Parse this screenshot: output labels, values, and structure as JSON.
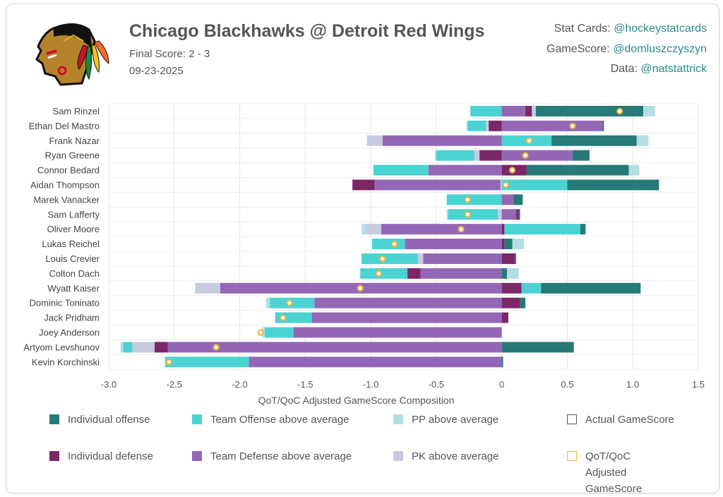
{
  "header": {
    "title": "Chicago Blackhawks @ Detroit Red Wings",
    "final_score": "Final Score: 2 - 3",
    "date": "09-23-2025",
    "credits": [
      {
        "label": "Stat Cards:",
        "handle": "@hockeystatcards"
      },
      {
        "label": "GameScore:",
        "handle": "@domluszczyszyn"
      },
      {
        "label": "Data:",
        "handle": "@natstattrick"
      }
    ],
    "logo": "Chicago Blackhawks logo"
  },
  "colors": {
    "IO": "#267a78",
    "TO": "#4bd3d3",
    "PP": "#b2dfe2",
    "ID": "#7a2868",
    "TD": "#9467b6",
    "PK": "#c6cbe0",
    "actual": "#555555",
    "adjusted": "#f2b235"
  },
  "legend": [
    {
      "key": "IO",
      "label": "Individual offense"
    },
    {
      "key": "TO",
      "label": "Team Offense above average"
    },
    {
      "key": "PP",
      "label": "PP above average"
    },
    {
      "key": "actual",
      "label": "Actual GameScore"
    },
    {
      "key": "ID",
      "label": "Individual defense"
    },
    {
      "key": "TD",
      "label": "Team Defense above average"
    },
    {
      "key": "PK",
      "label": "PK above average"
    },
    {
      "key": "adjusted",
      "label": "QoT/QoC Adjusted GameScore"
    }
  ],
  "chart_data": {
    "type": "bar",
    "orientation": "horizontal-stacked",
    "xlabel": "QoT/QoC Adjusted GameScore Composition",
    "xlim": [
      -3.0,
      1.5
    ],
    "xticks": [
      "-3.0",
      "-2.5",
      "-2.0",
      "-1.5",
      "-1.0",
      "-0.5",
      "0",
      "0.5",
      "1.0",
      "1.5"
    ],
    "grid": true,
    "players": [
      {
        "name": "Sam Rinzel",
        "adjusted": 0.9,
        "neg": [
          [
            "TO",
            -0.24
          ]
        ],
        "pos": [
          [
            "TD",
            0.18
          ],
          [
            "ID",
            0.05
          ],
          [
            "PK",
            0.03
          ],
          [
            "IO",
            0.82
          ],
          [
            "PP",
            0.09
          ]
        ]
      },
      {
        "name": "Ethan Del Mastro",
        "adjusted": 0.54,
        "neg": [
          [
            "ID",
            -0.1
          ],
          [
            "PK",
            -0.02
          ],
          [
            "TO",
            -0.14
          ],
          [
            "PP",
            -0.01
          ]
        ],
        "pos": [
          [
            "TD",
            0.77
          ],
          [
            "IO",
            0.01
          ]
        ]
      },
      {
        "name": "Frank Nazar",
        "adjusted": 0.21,
        "neg": [
          [
            "TD",
            -0.91
          ],
          [
            "PK",
            -0.12
          ]
        ],
        "pos": [
          [
            "TO",
            0.38
          ],
          [
            "IO",
            0.65
          ],
          [
            "PP",
            0.09
          ]
        ]
      },
      {
        "name": "Ryan Greene",
        "adjusted": 0.18,
        "neg": [
          [
            "ID",
            -0.17
          ],
          [
            "PK",
            -0.04
          ],
          [
            "TO",
            -0.29
          ],
          [
            "PP",
            -0.01
          ]
        ],
        "pos": [
          [
            "TD",
            0.54
          ],
          [
            "IO",
            0.13
          ]
        ]
      },
      {
        "name": "Connor Bedard",
        "adjusted": 0.08,
        "neg": [
          [
            "TD",
            -0.56
          ],
          [
            "TO",
            -0.42
          ]
        ],
        "pos": [
          [
            "ID",
            0.19
          ],
          [
            "IO",
            0.78
          ],
          [
            "PP",
            0.08
          ]
        ]
      },
      {
        "name": "Aidan Thompson",
        "adjusted": 0.03,
        "neg": [
          [
            "PK",
            -0.01
          ],
          [
            "TD",
            -0.96
          ],
          [
            "ID",
            -0.17
          ]
        ],
        "pos": [
          [
            "TO",
            0.5
          ],
          [
            "IO",
            0.7
          ]
        ]
      },
      {
        "name": "Marek Vanacker",
        "adjusted": -0.26,
        "neg": [
          [
            "TO",
            -0.42
          ]
        ],
        "pos": [
          [
            "TD",
            0.09
          ],
          [
            "IO",
            0.07
          ]
        ]
      },
      {
        "name": "Sam Lafferty",
        "adjusted": -0.26,
        "neg": [
          [
            "PK",
            -0.03
          ],
          [
            "TO",
            -0.38
          ],
          [
            "PP",
            -0.01
          ]
        ],
        "pos": [
          [
            "TD",
            0.11
          ],
          [
            "ID",
            0.02
          ],
          [
            "IO",
            0.01
          ]
        ]
      },
      {
        "name": "Oliver Moore",
        "adjusted": -0.31,
        "neg": [
          [
            "TD",
            -0.92
          ],
          [
            "PK",
            -0.12
          ],
          [
            "PP",
            -0.03
          ]
        ],
        "pos": [
          [
            "ID",
            0.02
          ],
          [
            "TO",
            0.58
          ],
          [
            "IO",
            0.04
          ]
        ]
      },
      {
        "name": "Lukas Reichel",
        "adjusted": -0.82,
        "neg": [
          [
            "TD",
            -0.74
          ],
          [
            "TO",
            -0.25
          ]
        ],
        "pos": [
          [
            "ID",
            0.02
          ],
          [
            "IO",
            0.06
          ],
          [
            "PP",
            0.09
          ]
        ]
      },
      {
        "name": "Louis Crevier",
        "adjusted": -0.91,
        "neg": [
          [
            "TD",
            -0.6
          ],
          [
            "PK",
            -0.04
          ],
          [
            "TO",
            -0.43
          ]
        ],
        "pos": [
          [
            "ID",
            0.1
          ],
          [
            "IO",
            0.01
          ]
        ]
      },
      {
        "name": "Colton Dach",
        "adjusted": -0.94,
        "neg": [
          [
            "TD",
            -0.62
          ],
          [
            "ID",
            -0.1
          ],
          [
            "TO",
            -0.36
          ]
        ],
        "pos": [
          [
            "IO",
            0.04
          ],
          [
            "PP",
            0.09
          ]
        ]
      },
      {
        "name": "Wyatt Kaiser",
        "adjusted": -1.08,
        "neg": [
          [
            "TD",
            -2.15
          ],
          [
            "PK",
            -0.19
          ]
        ],
        "pos": [
          [
            "ID",
            0.15
          ],
          [
            "TO",
            0.15
          ],
          [
            "IO",
            0.76
          ]
        ]
      },
      {
        "name": "Dominic Toninato",
        "adjusted": -1.62,
        "neg": [
          [
            "TD",
            -1.43
          ],
          [
            "TO",
            -0.34
          ],
          [
            "PP",
            -0.03
          ]
        ],
        "pos": [
          [
            "ID",
            0.14
          ],
          [
            "IO",
            0.04
          ]
        ]
      },
      {
        "name": "Jack Pridham",
        "adjusted": -1.67,
        "neg": [
          [
            "TD",
            -1.45
          ],
          [
            "TO",
            -0.28
          ]
        ],
        "pos": [
          [
            "ID",
            0.05
          ]
        ]
      },
      {
        "name": "Joey Anderson",
        "adjusted": -1.84,
        "neg": [
          [
            "TD",
            -1.59
          ],
          [
            "TO",
            -0.22
          ],
          [
            "PP",
            -0.02
          ]
        ],
        "pos": []
      },
      {
        "name": "Artyom Levshunov",
        "adjusted": -2.18,
        "neg": [
          [
            "TD",
            -2.55
          ],
          [
            "ID",
            -0.1
          ],
          [
            "PK",
            -0.17
          ],
          [
            "TO",
            -0.07
          ],
          [
            "PP",
            -0.02
          ]
        ],
        "pos": [
          [
            "IO",
            0.55
          ]
        ]
      },
      {
        "name": "Kevin Korchinski",
        "adjusted": -2.54,
        "neg": [
          [
            "TD",
            -1.93
          ],
          [
            "TO",
            -0.64
          ]
        ],
        "pos": [
          [
            "IO",
            0.01
          ]
        ]
      }
    ]
  }
}
